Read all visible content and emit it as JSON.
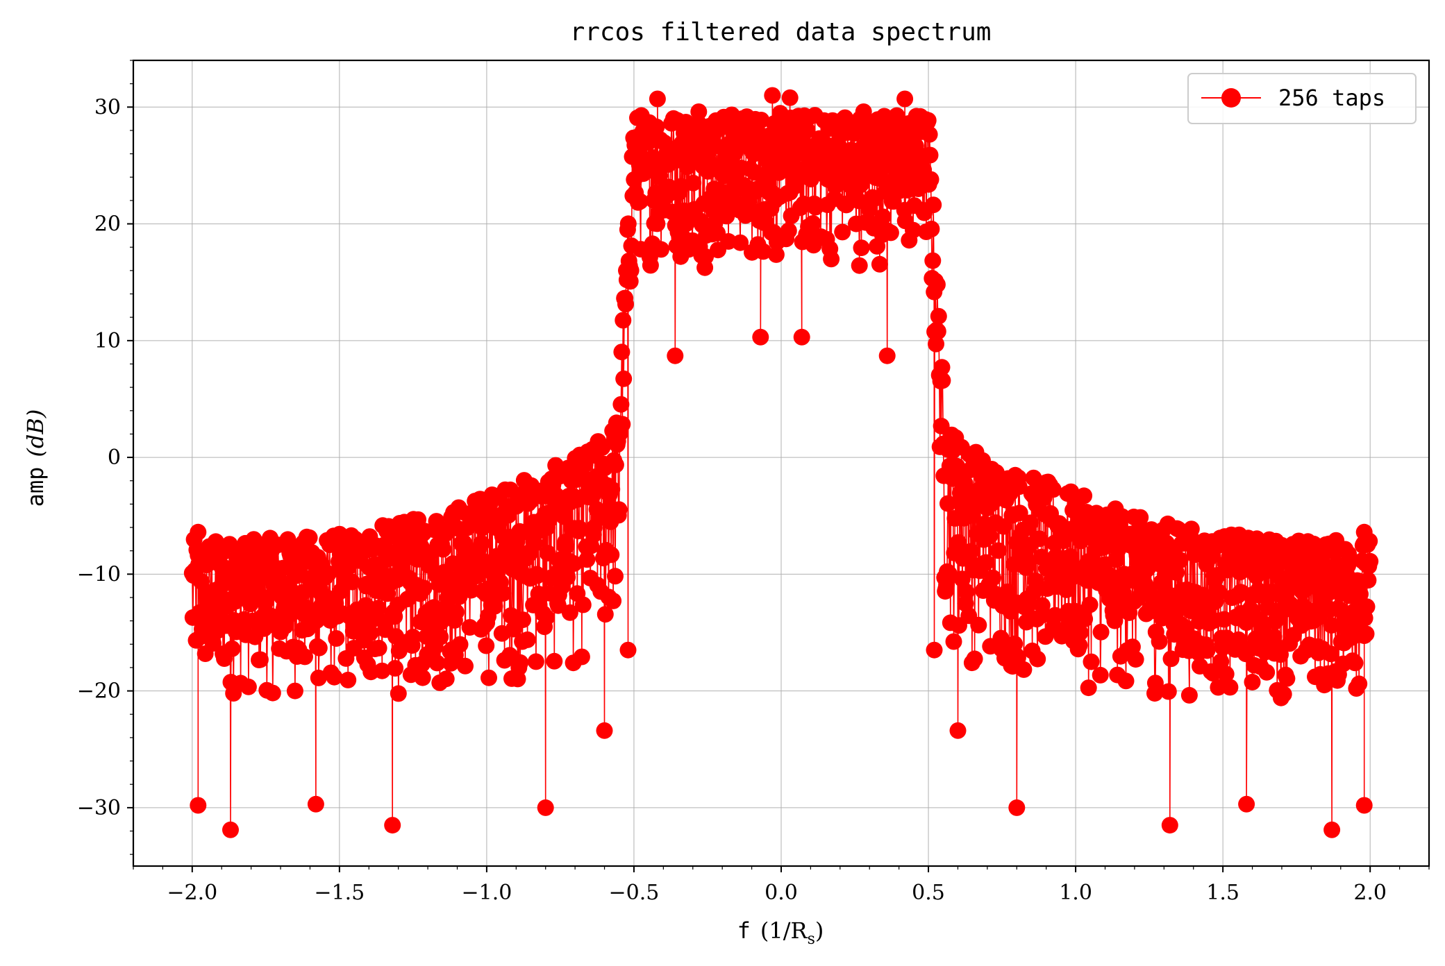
{
  "chart_data": {
    "type": "line",
    "title": "rrcos filtered data spectrum",
    "xlabel_text": "f",
    "xlabel_unit": "(1/R",
    "xlabel_sub": "s",
    "xlabel_close": ")",
    "ylabel_text": "amp",
    "ylabel_unit": "(dB)",
    "xlim": [
      -2.2,
      2.2
    ],
    "ylim": [
      -35,
      34
    ],
    "xticks": [
      -2.0,
      -1.5,
      -1.0,
      -0.5,
      0.0,
      0.5,
      1.0,
      1.5,
      2.0
    ],
    "xtick_labels": [
      "−2.0",
      "−1.5",
      "−1.0",
      "−0.5",
      "0.0",
      "0.5",
      "1.0",
      "1.5",
      "2.0"
    ],
    "yticks": [
      -30,
      -20,
      -10,
      0,
      10,
      20,
      30
    ],
    "ytick_labels": [
      "−30",
      "−20",
      "−10",
      "0",
      "10",
      "20",
      "30"
    ],
    "grid": true,
    "legend": "top-right",
    "colors": {
      "series": "#ff0000",
      "grid": "#b0b0b0",
      "axis": "#000000"
    },
    "series": [
      {
        "name": "256 taps",
        "marker": "circle",
        "x_range": [
          -2.0,
          2.0
        ],
        "passband": {
          "x": [
            -0.5,
            0.5
          ],
          "upper_envelope_db": 29.5,
          "lower_envelope_db": 16
        },
        "transition_band": {
          "abs_x": [
            0.5,
            0.55
          ],
          "from_db": 30,
          "to_db": 6
        },
        "stopband_envelope": {
          "abs_x": [
            0.55,
            0.6,
            0.7,
            0.8,
            1.0,
            1.2,
            1.5,
            1.8,
            2.0
          ],
          "upper_db": [
            4,
            2,
            0,
            -1,
            -3,
            -5,
            -6.5,
            -7,
            -7
          ],
          "lower_db": [
            -15,
            -18,
            -19,
            -20,
            -20,
            -21,
            -21,
            -21,
            -21
          ]
        },
        "highlighted_points": [
          [
            -1.98,
            -6.4
          ],
          [
            -1.87,
            -31.9
          ],
          [
            -1.98,
            -29.8
          ],
          [
            -1.58,
            -29.7
          ],
          [
            -1.32,
            -31.5
          ],
          [
            -0.8,
            -30.0
          ],
          [
            -0.6,
            -23.4
          ],
          [
            -0.52,
            -16.5
          ],
          [
            -0.36,
            8.7
          ],
          [
            -0.07,
            10.3
          ],
          [
            0.07,
            10.3
          ],
          [
            0.36,
            8.7
          ],
          [
            0.52,
            -16.5
          ],
          [
            0.6,
            -23.4
          ],
          [
            0.8,
            -30.0
          ],
          [
            1.32,
            -31.5
          ],
          [
            1.58,
            -29.7
          ],
          [
            1.87,
            -31.9
          ],
          [
            1.98,
            -29.8
          ],
          [
            1.98,
            -6.4
          ],
          [
            -0.42,
            30.7
          ],
          [
            0.42,
            30.7
          ],
          [
            -0.03,
            31.0
          ],
          [
            0.03,
            30.8
          ],
          [
            -0.28,
            29.6
          ],
          [
            0.28,
            29.6
          ]
        ]
      }
    ]
  }
}
